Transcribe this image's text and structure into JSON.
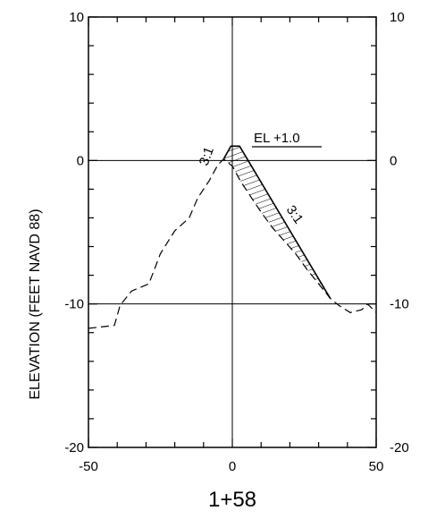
{
  "chart_data": {
    "type": "line",
    "title": "",
    "station_label": "1+58",
    "ylabel": "ELEVATION (FEET NAVD 88)",
    "xlabel": "",
    "xlim": [
      -50,
      50
    ],
    "ylim": [
      -20,
      10
    ],
    "x_ticks": [
      -50,
      0,
      50
    ],
    "x_tick_labels": [
      "-50",
      "0",
      "50"
    ],
    "y_ticks": [
      -20,
      -10,
      0,
      10
    ],
    "y_tick_labels": [
      "-20",
      "-10",
      "0",
      "10"
    ],
    "grid": true,
    "annotations": {
      "elevation_label": "EL +1.0",
      "left_slope_label": "3:1",
      "right_slope_label": "3:1"
    },
    "series": [
      {
        "style": "dashed",
        "x": [
          -50,
          -41,
          -39,
          -35,
          -29,
          -25,
          -20,
          -15,
          -12,
          -8,
          -5,
          -3,
          0,
          3,
          6,
          10,
          14,
          18,
          22,
          26,
          30,
          34,
          37,
          41,
          45,
          47,
          50
        ],
        "y": [
          -11.7,
          -11.5,
          -10.1,
          -9.1,
          -8.6,
          -6.5,
          -4.9,
          -4.0,
          -2.6,
          -1.4,
          -0.3,
          0.1,
          -0.4,
          -1.5,
          -2.4,
          -3.6,
          -4.7,
          -5.6,
          -6.5,
          -7.6,
          -8.6,
          -9.6,
          -10.1,
          -10.6,
          -10.4,
          -10.0,
          -10.6
        ]
      },
      {
        "style": "solid",
        "x": [
          -3,
          -0.5,
          2.5,
          34
        ],
        "y": [
          0.1,
          1.0,
          1.0,
          -9.6
        ]
      }
    ]
  }
}
